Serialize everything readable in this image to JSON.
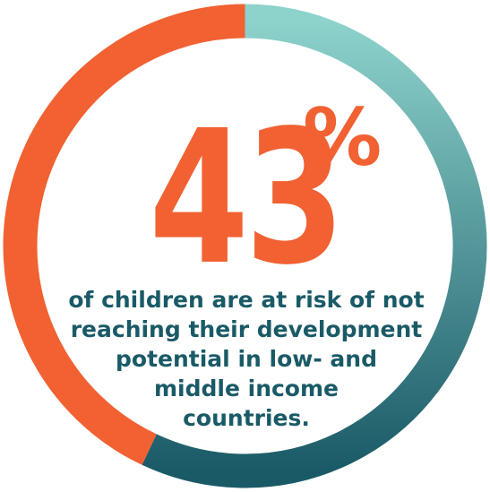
{
  "chart_data": {
    "type": "pie",
    "slices": [
      {
        "value": 43,
        "color": "#f16132"
      },
      {
        "value": 57,
        "color": "#1a5a67"
      }
    ],
    "gradient_start_color": "#8ed2cc",
    "gradient_end_color": "#1a5a67"
  },
  "headline": {
    "value": "43",
    "unit": "%"
  },
  "caption_lines": [
    "of children are at risk of not",
    "reaching their development",
    "potential in low- and",
    "middle income",
    "countries."
  ],
  "colors": {
    "accent": "#f16132",
    "text_dark": "#1a5a67",
    "background": "#ffffff"
  }
}
